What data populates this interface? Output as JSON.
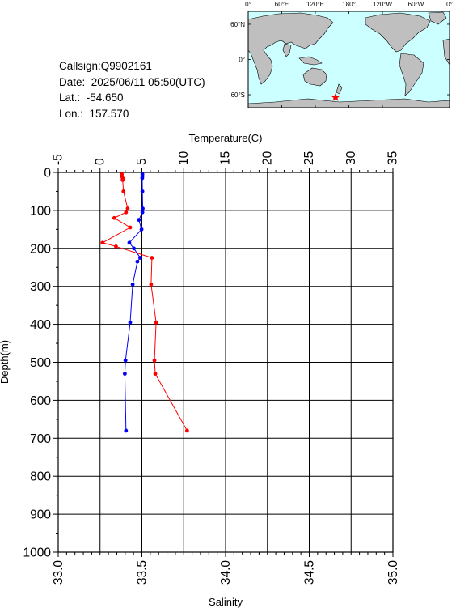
{
  "station": {
    "callsign": "Callsign:Q9902161",
    "date": "Date:  2025/06/11 05:50(UTC)",
    "lat": "Lat.:  -54.650",
    "lon": "Lon.:  157.570"
  },
  "map": {
    "top_labels": [
      "0°",
      "60°E",
      "120°E",
      "180°",
      "120°W",
      "60°W",
      "0°"
    ],
    "left_labels": [
      "60°N",
      "0°",
      "60°S"
    ],
    "marker_color": "#ff0000",
    "ocean_color": "#ccffff",
    "land_color": "#bfbfbf"
  },
  "chart_data": {
    "type": "line",
    "xlabel_top": "Temperature(C)",
    "xlabel_bottom": "Salinity",
    "ylabel": "Depth(m)",
    "temperature_range": [
      -5,
      35
    ],
    "temperature_ticks": [
      "-5",
      "0",
      "5",
      "10",
      "15",
      "20",
      "25",
      "30",
      "35"
    ],
    "salinity_range": [
      33.0,
      35.0
    ],
    "salinity_ticks": [
      "33.0",
      "33.5",
      "34.0",
      "34.5",
      "35.0"
    ],
    "depth_range": [
      0,
      1000
    ],
    "depth_ticks": [
      "0",
      "100",
      "200",
      "300",
      "400",
      "500",
      "600",
      "700",
      "800",
      "900",
      "1000"
    ],
    "grid": true,
    "series": [
      {
        "color": "#ff0000",
        "kind": "temperature",
        "points": [
          [
            2.6,
            5
          ],
          [
            2.6,
            10
          ],
          [
            2.7,
            15
          ],
          [
            2.7,
            20
          ],
          [
            2.8,
            50
          ],
          [
            3.3,
            95
          ],
          [
            3.1,
            105
          ],
          [
            1.7,
            120
          ],
          [
            3.6,
            145
          ],
          [
            0.3,
            185
          ],
          [
            1.9,
            195
          ],
          [
            6.2,
            225
          ],
          [
            6.1,
            295
          ],
          [
            6.7,
            395
          ],
          [
            6.5,
            495
          ],
          [
            6.6,
            530
          ],
          [
            10.4,
            680
          ]
        ]
      },
      {
        "color": "#0000ff",
        "kind": "salinity",
        "points": [
          [
            33.503,
            5
          ],
          [
            33.503,
            10
          ],
          [
            33.502,
            15
          ],
          [
            33.503,
            50
          ],
          [
            33.505,
            95
          ],
          [
            33.503,
            105
          ],
          [
            33.482,
            125
          ],
          [
            33.498,
            150
          ],
          [
            33.425,
            185
          ],
          [
            33.452,
            200
          ],
          [
            33.49,
            225
          ],
          [
            33.473,
            235
          ],
          [
            33.445,
            295
          ],
          [
            33.43,
            395
          ],
          [
            33.402,
            495
          ],
          [
            33.398,
            530
          ],
          [
            33.405,
            680
          ]
        ]
      }
    ]
  }
}
